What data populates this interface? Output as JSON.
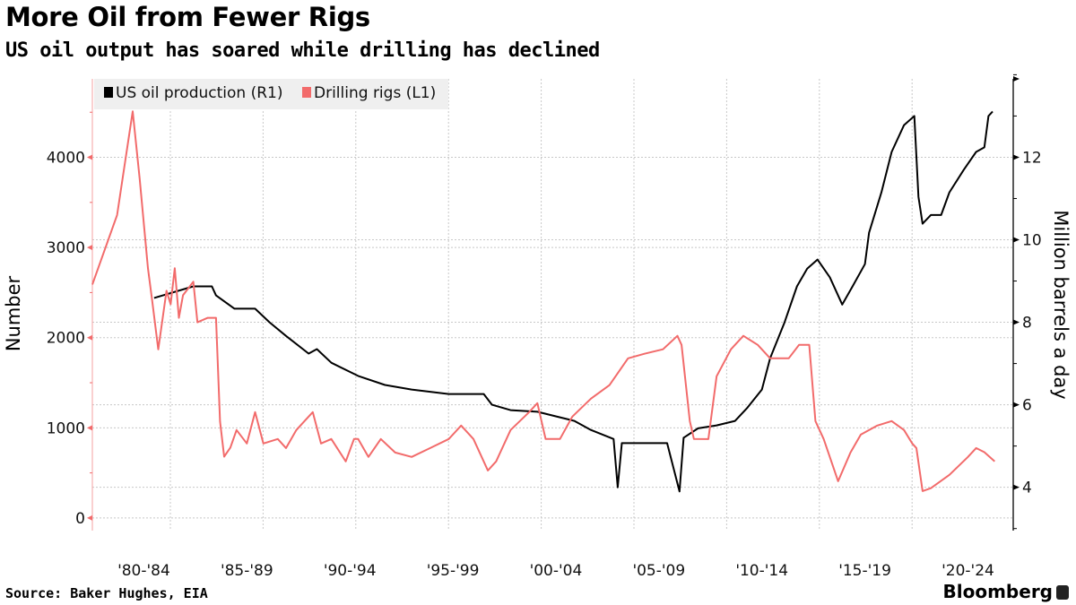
{
  "header": {
    "title": "More Oil from Fewer Rigs",
    "subtitle": "US oil output has soared while drilling has declined"
  },
  "footer": {
    "source": "Source: Baker Hughes, EIA",
    "brand": "Bloomberg"
  },
  "chart_data": {
    "type": "line",
    "title": "More Oil from Fewer Rigs",
    "subtitle": "US oil output has soared while drilling has declined",
    "x_tick_labels": [
      "'80-'84",
      "'85-'89",
      "'90-'94",
      "'95-'99",
      "'00-'04",
      "'05-'09",
      "'10-'14",
      "'15-'19",
      "'20-'24"
    ],
    "xlim": [
      1980,
      2024.7
    ],
    "left_axis": {
      "label": "Number",
      "ticks": [
        0,
        1000,
        2000,
        3000,
        4000
      ],
      "tick_labels": [
        "0",
        "1000",
        "2000",
        "3000",
        "4000"
      ],
      "ylim": [
        -140,
        4870
      ],
      "color": "#f26b6b"
    },
    "right_axis": {
      "label": "Million barrels a day",
      "ticks": [
        4,
        6,
        8,
        10,
        12
      ],
      "tick_labels": [
        "4",
        "6",
        "8",
        "10",
        "12"
      ],
      "ylim": [
        2.95,
        13.9
      ],
      "color": "#000000"
    },
    "grid": true,
    "legend": {
      "placement": "top-left",
      "entries": [
        {
          "label": "US oil production (R1)",
          "color": "#000000"
        },
        {
          "label": "Drilling rigs (L1)",
          "color": "#f26b6b"
        }
      ]
    },
    "series": [
      {
        "name": "US oil production (R1)",
        "axis": "right",
        "color": "#000000",
        "x": [
          1983.0,
          1984.9,
          1985.8,
          1986.0,
          1986.9,
          1987.9,
          1988.6,
          1989.4,
          1990.5,
          1990.9,
          1991.6,
          1992.9,
          1994.2,
          1995.5,
          1997.3,
          1999.0,
          1999.4,
          2000.3,
          2001.6,
          2002.5,
          2003.4,
          2004.2,
          2005.3,
          2005.5,
          2005.7,
          2006.8,
          2007.9,
          2008.5,
          2008.7,
          2009.4,
          2010.3,
          2011.2,
          2011.8,
          2012.5,
          2012.9,
          2013.6,
          2014.2,
          2014.7,
          2015.2,
          2015.8,
          2016.4,
          2016.9,
          2017.5,
          2017.7,
          2018.3,
          2018.8,
          2019.4,
          2019.9,
          2020.1,
          2020.3,
          2020.7,
          2021.2,
          2021.6,
          2022.3,
          2022.9,
          2023.3,
          2023.5,
          2023.7
        ],
        "y": [
          8.59,
          8.87,
          8.87,
          8.65,
          8.33,
          8.33,
          8.0,
          7.67,
          7.24,
          7.35,
          7.02,
          6.7,
          6.48,
          6.37,
          6.26,
          6.26,
          6.0,
          5.87,
          5.83,
          5.72,
          5.61,
          5.39,
          5.17,
          4.0,
          5.07,
          5.07,
          5.07,
          3.9,
          5.2,
          5.43,
          5.5,
          5.61,
          5.93,
          6.37,
          7.13,
          8.0,
          8.87,
          9.3,
          9.52,
          9.09,
          8.43,
          8.87,
          9.41,
          10.17,
          11.15,
          12.13,
          12.78,
          13.0,
          11.04,
          10.39,
          10.6,
          10.6,
          11.15,
          11.7,
          12.13,
          12.24,
          13.0,
          13.11
        ]
      },
      {
        "name": "Drilling rigs (L1)",
        "axis": "left",
        "color": "#f26b6b",
        "x": [
          1980.0,
          1981.2,
          1981.96,
          1982.3,
          1982.7,
          1982.9,
          1983.2,
          1983.6,
          1983.8,
          1984.0,
          1984.2,
          1984.4,
          1984.9,
          1985.1,
          1985.6,
          1986.0,
          1986.2,
          1986.4,
          1986.7,
          1987.0,
          1987.5,
          1987.9,
          1988.3,
          1989.0,
          1989.4,
          1989.9,
          1990.3,
          1990.7,
          1991.1,
          1991.6,
          1992.3,
          1992.7,
          1992.9,
          1993.4,
          1994.0,
          1994.7,
          1995.5,
          1996.4,
          1997.3,
          1997.9,
          1998.5,
          1999.2,
          1999.6,
          2000.3,
          2001.2,
          2001.6,
          2002.0,
          2002.7,
          2003.3,
          2004.2,
          2005.1,
          2006.0,
          2006.8,
          2007.7,
          2008.4,
          2008.6,
          2009.0,
          2009.2,
          2009.9,
          2010.3,
          2011.0,
          2011.6,
          2012.3,
          2012.9,
          2013.8,
          2014.3,
          2014.8,
          2015.1,
          2015.5,
          2016.2,
          2016.8,
          2017.3,
          2018.1,
          2018.8,
          2019.4,
          2019.8,
          2020.0,
          2020.3,
          2020.7,
          2021.6,
          2022.5,
          2022.9,
          2023.3,
          2023.8
        ],
        "y": [
          2590,
          3360,
          4510,
          3760,
          2770,
          2420,
          1870,
          2520,
          2370,
          2770,
          2220,
          2470,
          2620,
          2170,
          2220,
          2220,
          1070,
          680,
          780,
          975,
          826,
          1174,
          826,
          876,
          776,
          975,
          1075,
          1174,
          826,
          876,
          627,
          876,
          876,
          677,
          876,
          726,
          677,
          776,
          876,
          1025,
          876,
          527,
          627,
          975,
          1174,
          1274,
          876,
          876,
          1124,
          1323,
          1473,
          1771,
          1821,
          1871,
          2020,
          1920,
          1075,
          876,
          875,
          1572,
          1871,
          2020,
          1920,
          1771,
          1771,
          1920,
          1920,
          1075,
          876,
          408,
          726,
          925,
          1025,
          1075,
          975,
          826,
          776,
          298,
          330,
          478,
          677,
          776,
          730,
          627
        ]
      }
    ]
  }
}
